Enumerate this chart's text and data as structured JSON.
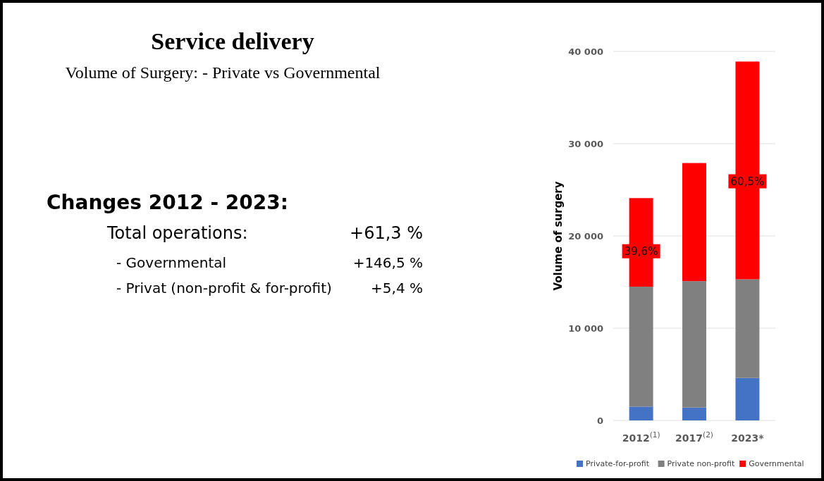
{
  "chart_data": {
    "type": "bar",
    "title": "Service delivery",
    "subtitle": "Volume of Surgery: - Private vs Governmental",
    "ylabel": "Volume of surgery",
    "categories": [
      "2012$^{(1)}$",
      "2017$^{(2)}$",
      "2023*"
    ],
    "stacked": true,
    "series": [
      {
        "name": "Private-for-profit",
        "color": "#4472c4",
        "values": [
          1500,
          1400,
          4600
        ]
      },
      {
        "name": "Private non-profit",
        "color": "#808080",
        "values": [
          13000,
          13700,
          10700
        ]
      },
      {
        "name": "Governmental",
        "color": "#ff0000",
        "values": [
          9600,
          12800,
          23600
        ]
      }
    ],
    "ylim": [
      0,
      40000
    ],
    "yticks": [
      {
        "value": 0,
        "label": "0"
      },
      {
        "value": 10000,
        "label": "10 000"
      },
      {
        "value": 20000,
        "label": "20 000"
      },
      {
        "value": 30000,
        "label": "30 000"
      },
      {
        "value": 40000,
        "label": "40 000"
      }
    ],
    "grid": "y",
    "legend": "bottom",
    "annotations": [
      "39,6%",
      "60,5%",
      "Changes 2012 - 2023:",
      "Total operations:",
      "+61,3 %",
      "- Governmental",
      "+146,5 %",
      "- Privat (non-profit & for-profit)",
      "+5,4 %"
    ]
  }
}
